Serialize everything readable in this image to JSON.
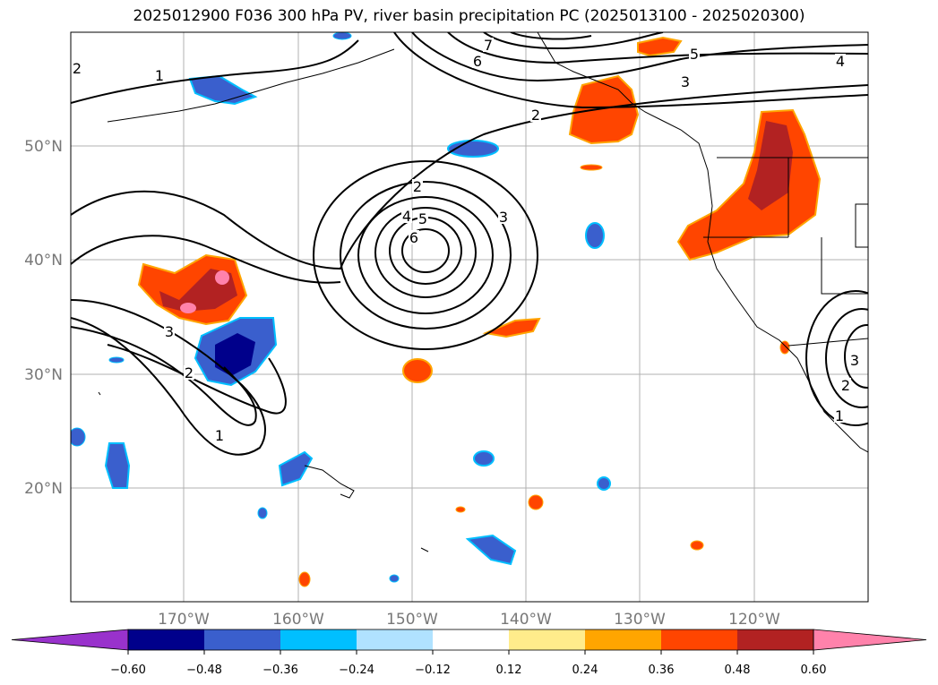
{
  "title": "2025012900 F036 300 hPa PV, river basin precipitation PC (2025013100 - 2025020300)",
  "map": {
    "lon_labels": [
      "170°W",
      "160°W",
      "150°W",
      "140°W",
      "130°W",
      "120°W"
    ],
    "lat_labels": [
      "50°N",
      "40°N",
      "30°N",
      "20°N"
    ],
    "grid": true,
    "contour_color": "#000000",
    "coastline_color": "#000000"
  },
  "pv_contour_labels": [
    "2",
    "1",
    "7",
    "6",
    "5",
    "4",
    "3",
    "2",
    "2",
    "4",
    "5",
    "6",
    "3",
    "3",
    "2",
    "1",
    "3",
    "2",
    "1"
  ],
  "colorbar": {
    "extend": "both",
    "tick_labels": [
      "−0.60",
      "−0.48",
      "−0.36",
      "−0.24",
      "−0.12",
      "0.12",
      "0.24",
      "0.36",
      "0.48",
      "0.60"
    ],
    "colors": [
      "#9932cc",
      "#00008b",
      "#3a5fcd",
      "#00bfff",
      "#b0e2ff",
      "#ffffff",
      "#ffec8b",
      "#ffa500",
      "#ff4500",
      "#b22222",
      "#ff82ab"
    ]
  }
}
